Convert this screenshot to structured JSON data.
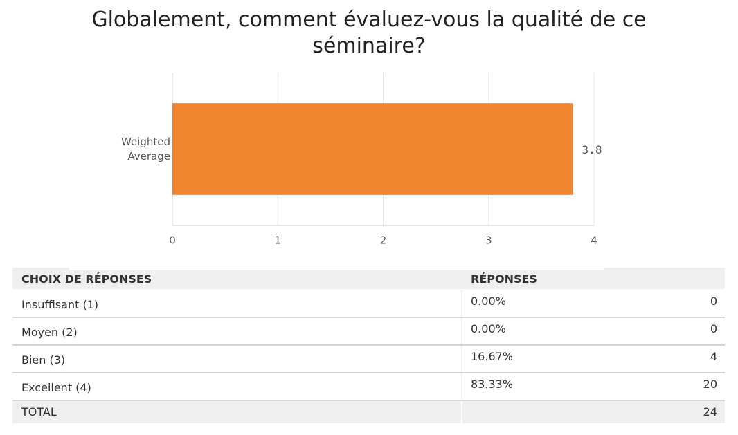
{
  "chart_data": {
    "type": "bar",
    "orientation": "horizontal",
    "title": "Globalement, comment évaluez-vous la qualité de ce séminaire?",
    "categories": [
      "Weighted Average"
    ],
    "values": [
      3.8
    ],
    "color": "#f0862f",
    "xlim": [
      0,
      4
    ],
    "xticks": [
      0,
      1,
      2,
      3,
      4
    ],
    "grid": true
  },
  "table": {
    "header": [
      "CHOIX DE RÉPONSES",
      "RÉPONSES"
    ],
    "rows": [
      [
        "Insuffisant (1)",
        "0.00%",
        "0"
      ],
      [
        "Moyen (2)",
        "0.00%",
        "0"
      ],
      [
        "Bien (3)",
        "16.67%",
        "4"
      ],
      [
        "Excellent (4)",
        "83.33%",
        "20"
      ]
    ],
    "total": [
      "TOTAL",
      "24"
    ]
  }
}
